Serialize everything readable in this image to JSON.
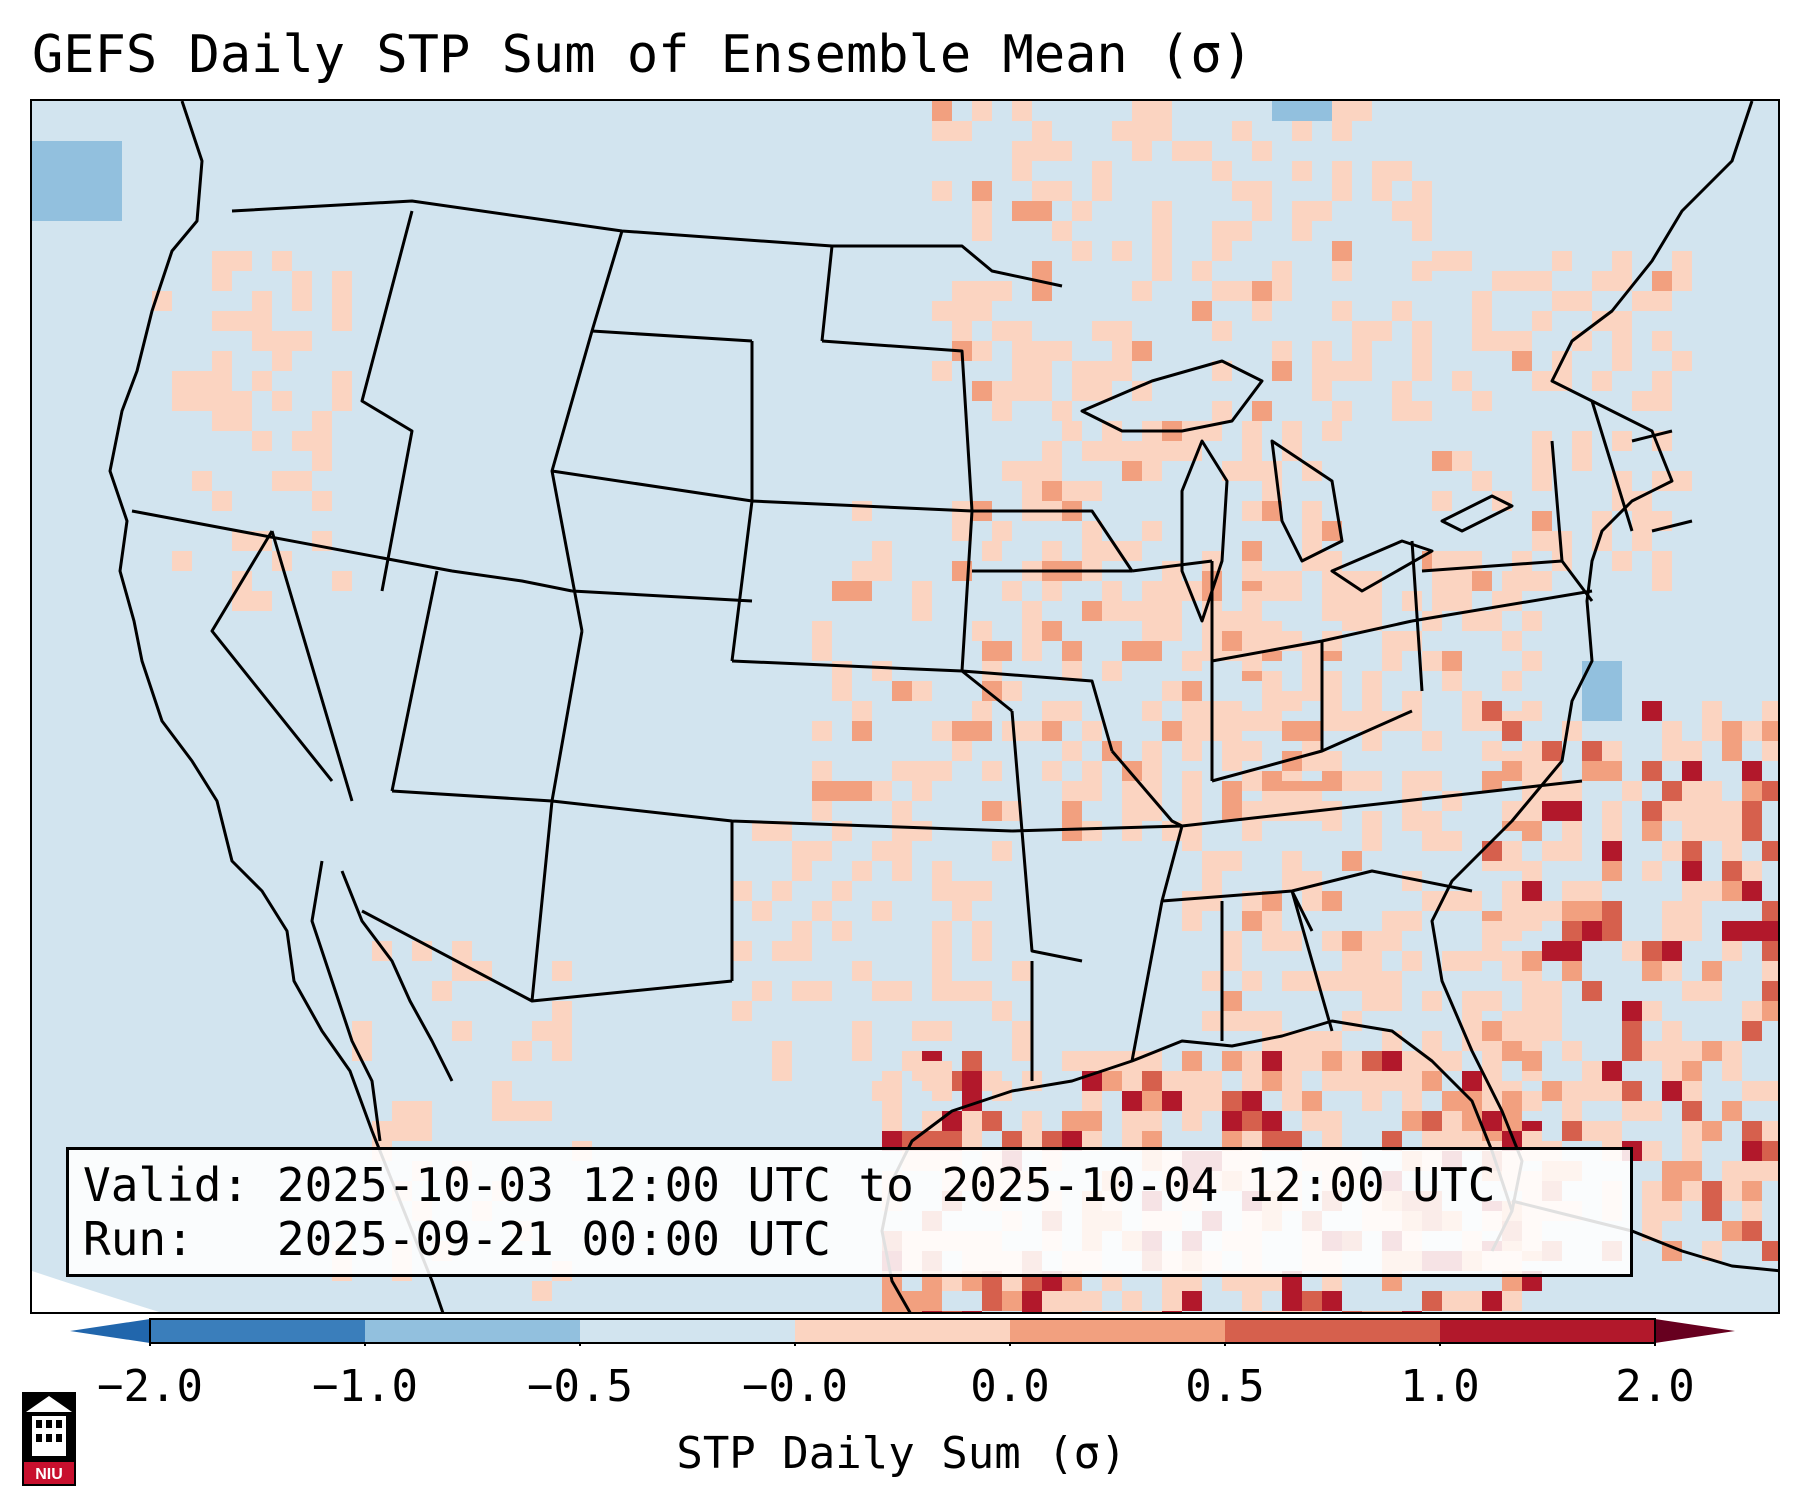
{
  "title": "GEFS Daily STP Sum of Ensemble Mean (σ)",
  "info": {
    "valid_label": "Valid:",
    "valid_value": "2025-10-03 12:00 UTC to 2025-10-04 12:00 UTC",
    "run_label": "Run:",
    "run_value": "2025-09-21 00:00 UTC"
  },
  "colorbar": {
    "label": "STP Daily Sum (σ)",
    "ticks": [
      "−2.0",
      "−1.0",
      "−0.5",
      "−0.0",
      "0.0",
      "0.5",
      "1.0",
      "2.0"
    ],
    "colors": [
      "#3a7ebb",
      "#92c0de",
      "#d2e4ef",
      "#f8f7f6",
      "#fbd4c1",
      "#f2a07f",
      "#d6604d",
      "#b2182b"
    ],
    "under_color": "#2166ac",
    "over_color": "#67001f"
  },
  "logo": {
    "text": "NIU",
    "icon": "niu-logo-icon"
  }
}
